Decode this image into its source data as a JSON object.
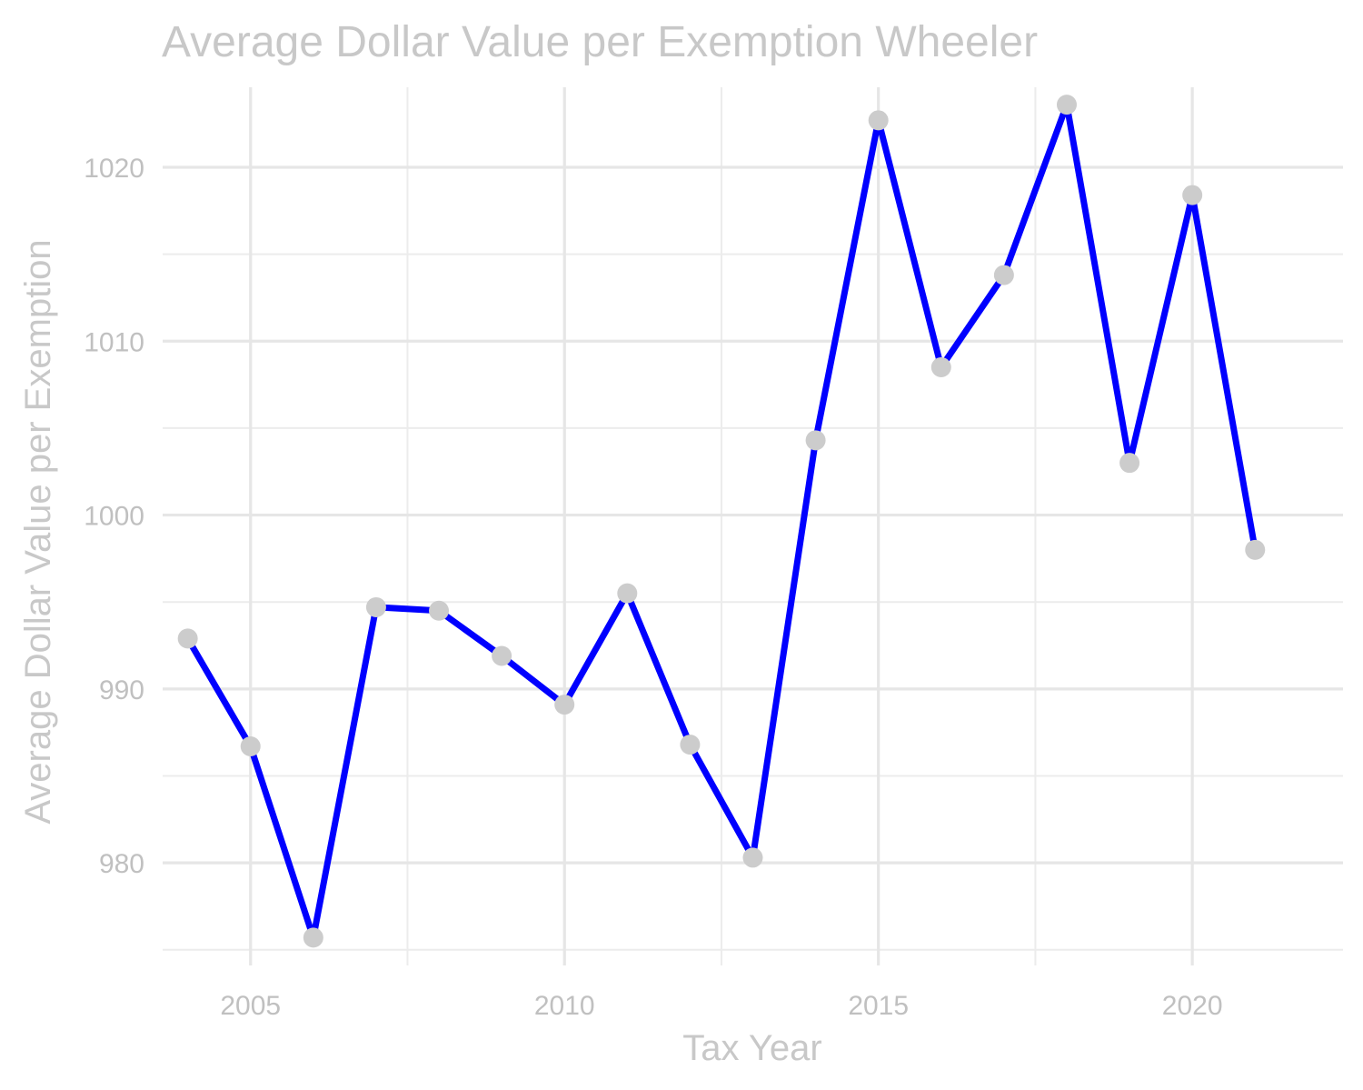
{
  "chart_data": {
    "type": "line",
    "title": "Average Dollar Value per Exemption Wheeler",
    "xlabel": "Tax Year",
    "ylabel": "Average Dollar Value per Exemption",
    "xlim": [
      2003.6,
      2022.4
    ],
    "ylim": [
      974.1,
      1024.6
    ],
    "x_ticks": [
      2005,
      2010,
      2015,
      2020
    ],
    "y_ticks": [
      980,
      990,
      1000,
      1010,
      1020
    ],
    "grid": true,
    "line_color": "#0000ff",
    "point_color": "#cccccc",
    "series": [
      {
        "x": [
          2004,
          2005,
          2006,
          2007,
          2008,
          2009,
          2010,
          2011,
          2012,
          2013,
          2014,
          2015,
          2016,
          2017,
          2018,
          2019,
          2020,
          2021
        ],
        "values": [
          992.9,
          986.7,
          975.7,
          994.7,
          994.5,
          991.9,
          989.1,
          995.5,
          986.8,
          980.3,
          1004.3,
          1022.7,
          1008.5,
          1013.8,
          1023.6,
          1003.0,
          1018.4,
          998.0
        ]
      }
    ]
  }
}
